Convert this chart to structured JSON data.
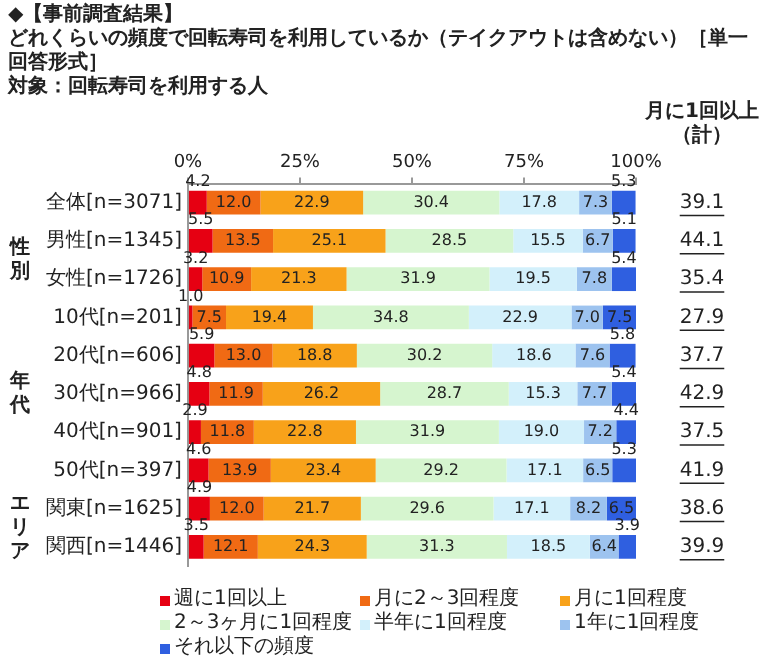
{
  "chart_data": {
    "type": "bar",
    "orientation": "horizontal",
    "stacked": true,
    "title": "◆【事前調査結果】",
    "subtitle": "どれくらいの頻度で回転寿司を利用しているか（テイクアウトは含めない）［単一回答形式］",
    "categories": [
      "全体[n=3071]",
      "男性[n=1345]",
      "女性[n=1726]",
      "10代[n=201]",
      "20代[n=606]",
      "30代[n=966]",
      "40代[n=901]",
      "50代[n=397]",
      "関東[n=1625]",
      "関西[n=1446]"
    ],
    "series": [
      {
        "name": "週に1回以上",
        "color": "#e60012",
        "values": [
          4.2,
          5.5,
          3.2,
          1.0,
          5.9,
          4.8,
          2.9,
          4.6,
          4.9,
          3.5
        ],
        "value_labels": [
          "4.2",
          "5.5",
          "3.2",
          "1.0",
          "5.9",
          "4.8",
          "2.9",
          "4.6",
          "4.9",
          "3.5"
        ]
      },
      {
        "name": "月に2～3回程度",
        "color": "#f06a14",
        "values": [
          12.0,
          13.5,
          10.9,
          7.5,
          13.0,
          11.9,
          11.8,
          13.9,
          12.0,
          12.1
        ],
        "value_labels": [
          "12.0",
          "13.5",
          "10.9",
          "7.5",
          "13.0",
          "11.9",
          "11.8",
          "13.9",
          "12.0",
          "12.1"
        ]
      },
      {
        "name": "月に1回程度",
        "color": "#f8a21a",
        "values": [
          22.9,
          25.1,
          21.3,
          19.4,
          18.8,
          26.2,
          22.8,
          23.4,
          21.7,
          24.3
        ],
        "value_labels": [
          "22.9",
          "25.1",
          "21.3",
          "19.4",
          "18.8",
          "26.2",
          "22.8",
          "23.4",
          "21.7",
          "24.3"
        ]
      },
      {
        "name": "2～3ヶ月に1回程度",
        "color": "#d6f5cf",
        "values": [
          30.4,
          28.5,
          31.9,
          34.8,
          30.2,
          28.7,
          31.9,
          29.2,
          29.6,
          31.3
        ],
        "value_labels": [
          "30.4",
          "28.5",
          "31.9",
          "34.8",
          "30.2",
          "28.7",
          "31.9",
          "29.2",
          "29.6",
          "31.3"
        ]
      },
      {
        "name": "半年に1回程度",
        "color": "#d3f0fb",
        "values": [
          17.8,
          15.5,
          19.5,
          22.9,
          18.6,
          15.3,
          19.0,
          17.1,
          17.1,
          18.5
        ],
        "value_labels": [
          "17.8",
          "15.5",
          "19.5",
          "22.9",
          "18.6",
          "15.3",
          "19.0",
          "17.1",
          "17.1",
          "18.5"
        ]
      },
      {
        "name": "1年に1回程度",
        "color": "#9dc3ef",
        "values": [
          7.3,
          6.7,
          7.8,
          7.0,
          7.6,
          7.7,
          7.2,
          6.5,
          8.2,
          6.4
        ],
        "value_labels": [
          "7.3",
          "6.7",
          "7.8",
          "7.0",
          "7.6",
          "7.7",
          "7.2",
          "6.5",
          "8.2",
          "6.4"
        ]
      },
      {
        "name": "それ以下の頻度",
        "color": "#2f5fe0",
        "values": [
          5.3,
          5.1,
          5.4,
          7.5,
          5.8,
          5.4,
          4.4,
          5.3,
          6.5,
          3.9
        ],
        "value_labels": [
          "5.3",
          "5.1",
          "5.4",
          "7.5",
          "5.8",
          "5.4",
          "4.4",
          "5.3",
          "6.5",
          "3.9"
        ]
      }
    ],
    "xlim": [
      0,
      100
    ],
    "xticks": [
      {
        "value": 0,
        "label": "0%"
      },
      {
        "value": 25,
        "label": "25%"
      },
      {
        "value": 50,
        "label": "50%"
      },
      {
        "value": 75,
        "label": "75%"
      },
      {
        "value": 100,
        "label": "100%"
      }
    ],
    "grid": false,
    "legend": "bottom",
    "annotations": [
      "対象：回転寿司を利用する人",
      "月に1回以上（計）",
      "39.1",
      "44.1",
      "35.4",
      "27.9",
      "37.7",
      "42.9",
      "37.5",
      "41.9",
      "38.6",
      "39.9",
      "性別",
      "年代",
      "エリア"
    ]
  }
}
